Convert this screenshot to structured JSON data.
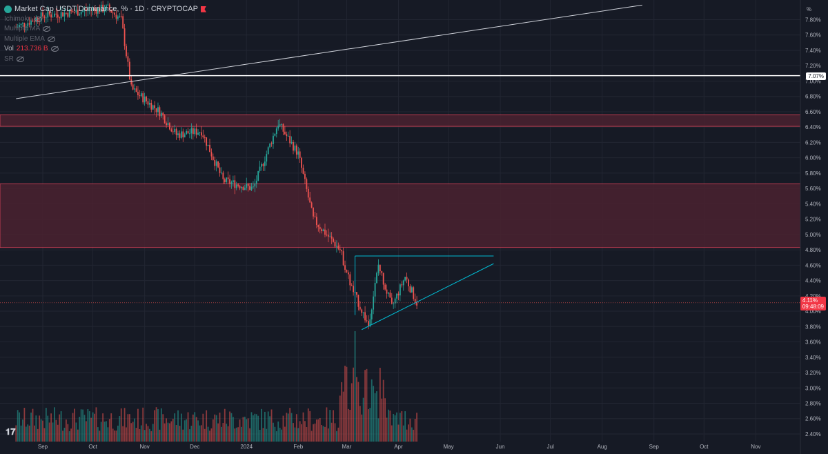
{
  "legend": {
    "title": "Market Cap USDT Dominance, % · 1D · CRYPTOCAP",
    "indicators": [
      "Ichimoku",
      "Multiple MA",
      "Multiple EMA"
    ],
    "volume_label": "Vol",
    "volume_value": "213.736 B",
    "extra": "SR"
  },
  "axis": {
    "unit": "%",
    "current_price": "4.11%",
    "current_time": "09:48:09",
    "level_label": "7.07%"
  },
  "colors": {
    "up": "#26a69a",
    "down": "#ef5350",
    "zone_fill": "#4a2230",
    "zone_border": "#e0445a",
    "trendline": "#00bcd4",
    "white_line": "#d1d4dc"
  },
  "chart_data": {
    "type": "candlestick",
    "title": "Market Cap USDT Dominance, % · 1D · CRYPTOCAP",
    "y_unit": "%",
    "ylim": [
      2.3,
      8.0
    ],
    "y_ticks": [
      "7.80%",
      "7.60%",
      "7.40%",
      "7.20%",
      "7.00%",
      "6.80%",
      "6.60%",
      "6.40%",
      "6.20%",
      "6.00%",
      "5.80%",
      "5.60%",
      "5.40%",
      "5.20%",
      "5.00%",
      "4.80%",
      "4.60%",
      "4.40%",
      "4.20%",
      "4.00%",
      "3.80%",
      "3.60%",
      "3.40%",
      "3.20%",
      "3.00%",
      "2.80%",
      "2.60%",
      "2.40%"
    ],
    "x_ticks": [
      "Sep",
      "Oct",
      "Nov",
      "Dec",
      "2024",
      "Feb",
      "Mar",
      "Apr",
      "May",
      "Jun",
      "Jul",
      "Aug",
      "Sep",
      "Oct",
      "Nov"
    ],
    "price_path": [
      {
        "date": "2023-08-16",
        "value": 7.7
      },
      {
        "date": "2023-09-01",
        "value": 7.85
      },
      {
        "date": "2023-09-20",
        "value": 7.9
      },
      {
        "date": "2023-10-10",
        "value": 7.95
      },
      {
        "date": "2023-10-18",
        "value": 7.8
      },
      {
        "date": "2023-10-24",
        "value": 6.9
      },
      {
        "date": "2023-11-10",
        "value": 6.6
      },
      {
        "date": "2023-11-20",
        "value": 6.3
      },
      {
        "date": "2023-12-05",
        "value": 6.35
      },
      {
        "date": "2023-12-18",
        "value": 5.7
      },
      {
        "date": "2024-01-05",
        "value": 5.6
      },
      {
        "date": "2024-01-20",
        "value": 6.45
      },
      {
        "date": "2024-02-01",
        "value": 6.05
      },
      {
        "date": "2024-02-10",
        "value": 5.2
      },
      {
        "date": "2024-02-26",
        "value": 4.8
      },
      {
        "date": "2024-03-04",
        "value": 4.3
      },
      {
        "date": "2024-03-14",
        "value": 3.82
      },
      {
        "date": "2024-03-20",
        "value": 4.6
      },
      {
        "date": "2024-03-28",
        "value": 4.05
      },
      {
        "date": "2024-04-05",
        "value": 4.45
      },
      {
        "date": "2024-04-12",
        "value": 4.11
      }
    ],
    "last_value": 4.11,
    "horizontal_level": 7.07,
    "resistance_zones": [
      {
        "low": 6.41,
        "high": 6.56
      },
      {
        "low": 4.83,
        "high": 5.66
      }
    ],
    "pattern": {
      "type": "ascending triangle",
      "resistance": {
        "start": "2024-03-06",
        "end": "2024-05-28",
        "value": 4.72
      },
      "support": {
        "start": "2024-03-10",
        "start_value": 3.76,
        "end": "2024-05-28",
        "end_value": 4.62
      }
    },
    "long_trendline": {
      "start": "2023-08-16",
      "start_value": 6.77,
      "end": "2024-08-25",
      "end_value": 7.99
    },
    "volume_note": "volume histogram with spike in early March 2024"
  }
}
